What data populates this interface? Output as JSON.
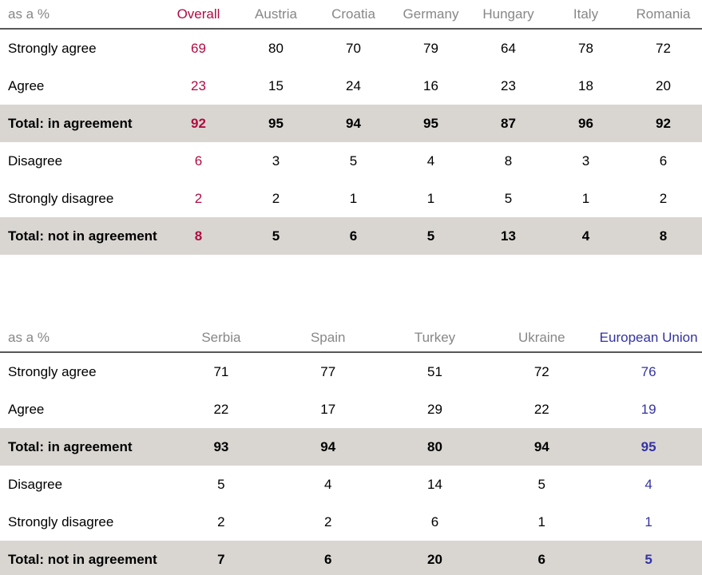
{
  "colors": {
    "accent_red": "#b10b41",
    "accent_blue": "#3333a3",
    "band_gray": "#d9d6d2",
    "header_text_gray": "#878787",
    "header_rule_gray": "#575757",
    "body_text": "#000000"
  },
  "chart_data": [
    {
      "type": "table",
      "corner_label": "as a %",
      "label_col_width": 200,
      "columns": [
        {
          "label": "Overall",
          "accent": "red"
        },
        {
          "label": "Austria",
          "accent": null
        },
        {
          "label": "Croatia",
          "accent": null
        },
        {
          "label": "Germany",
          "accent": null
        },
        {
          "label": "Hungary",
          "accent": null
        },
        {
          "label": "Italy",
          "accent": null
        },
        {
          "label": "Romania",
          "accent": null
        }
      ],
      "rows": [
        {
          "label": "Strongly agree",
          "total": false,
          "values": [
            69,
            80,
            70,
            79,
            64,
            78,
            72
          ]
        },
        {
          "label": "Agree",
          "total": false,
          "values": [
            23,
            15,
            24,
            16,
            23,
            18,
            20
          ]
        },
        {
          "label": "Total: in agreement",
          "total": true,
          "values": [
            92,
            95,
            94,
            95,
            87,
            96,
            92
          ]
        },
        {
          "label": "Disagree",
          "total": false,
          "values": [
            6,
            3,
            5,
            4,
            8,
            3,
            6
          ]
        },
        {
          "label": "Strongly disagree",
          "total": false,
          "values": [
            2,
            2,
            1,
            1,
            5,
            1,
            2
          ]
        },
        {
          "label": "Total: not in agreement",
          "total": true,
          "values": [
            8,
            5,
            6,
            5,
            13,
            4,
            8
          ]
        }
      ]
    },
    {
      "type": "table",
      "corner_label": "as a %",
      "label_col_width": 210,
      "columns": [
        {
          "label": "Serbia",
          "accent": null
        },
        {
          "label": "Spain",
          "accent": null
        },
        {
          "label": "Turkey",
          "accent": null
        },
        {
          "label": "Ukraine",
          "accent": null
        },
        {
          "label": "European Union",
          "accent": "blue"
        }
      ],
      "rows": [
        {
          "label": "Strongly agree",
          "total": false,
          "values": [
            71,
            77,
            51,
            72,
            76
          ]
        },
        {
          "label": "Agree",
          "total": false,
          "values": [
            22,
            17,
            29,
            22,
            19
          ]
        },
        {
          "label": "Total: in agreement",
          "total": true,
          "values": [
            93,
            94,
            80,
            94,
            95
          ]
        },
        {
          "label": "Disagree",
          "total": false,
          "values": [
            5,
            4,
            14,
            5,
            4
          ]
        },
        {
          "label": "Strongly disagree",
          "total": false,
          "values": [
            2,
            2,
            6,
            1,
            1
          ]
        },
        {
          "label": "Total: not in agreement",
          "total": true,
          "values": [
            7,
            6,
            20,
            6,
            5
          ]
        }
      ]
    }
  ]
}
